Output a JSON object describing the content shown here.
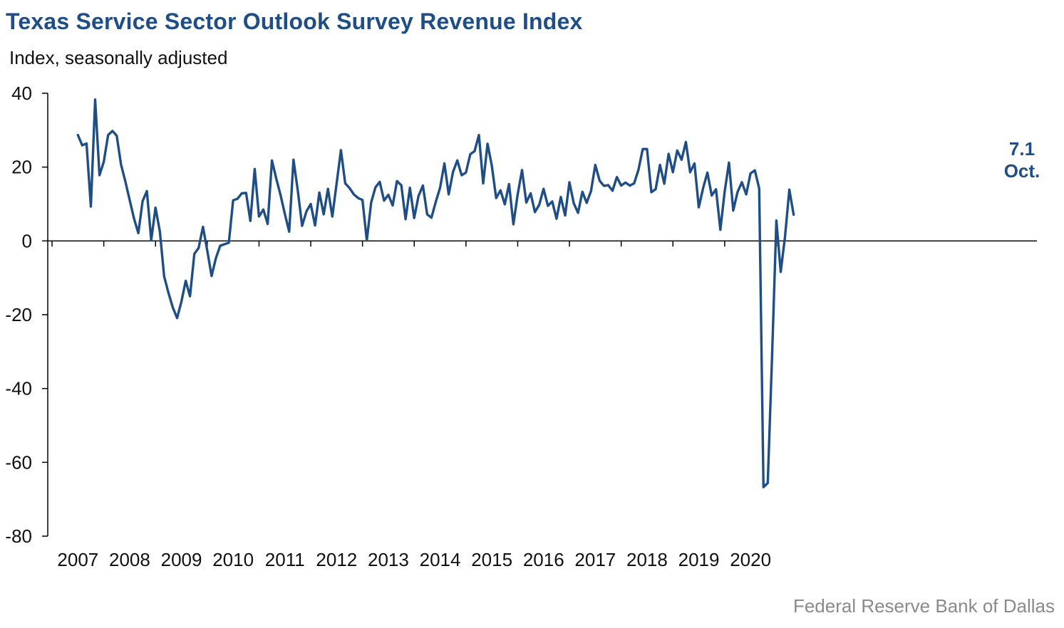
{
  "title": "Texas Service Sector Outlook Survey Revenue Index",
  "subtitle": "Index, seasonally adjusted",
  "source": "Federal Reserve Bank of Dallas",
  "colors": {
    "title": "#1f4e86",
    "series": "#1f4e86",
    "axis": "#000000",
    "source": "#8a8a8a"
  },
  "chart_data": {
    "type": "line",
    "title": "Texas Service Sector Outlook Survey Revenue Index",
    "ylabel": "Index, seasonally adjusted",
    "xlabel": "",
    "ylim": [
      -80,
      40
    ],
    "yticks": [
      40,
      20,
      0,
      -20,
      -40,
      -60,
      -80
    ],
    "ytick_labels": [
      "40",
      "20",
      "0",
      "-20",
      "-40",
      "-60",
      "-80"
    ],
    "xlim": [
      "2006-06",
      "2020-10"
    ],
    "xtick_labels": [
      "2007",
      "2008",
      "2009",
      "2010",
      "2011",
      "2012",
      "2013",
      "2014",
      "2015",
      "2016",
      "2017",
      "2018",
      "2019",
      "2020"
    ],
    "grid": false,
    "legend": "none",
    "start": "2007-01",
    "frequency": "monthly",
    "series": [
      {
        "values": [
          28.7,
          25.9,
          26.4,
          9.3,
          38.3,
          17.8,
          21.4,
          28.7,
          29.8,
          28.5,
          20.7,
          16.1,
          11.1,
          6.1,
          2.1,
          10.8,
          13.5,
          0.2,
          9.0,
          2.6,
          -9.6,
          -14.1,
          -18.0,
          -20.9,
          -16.5,
          -10.8,
          -15.0,
          -3.5,
          -1.9,
          3.8,
          -2.6,
          -9.5,
          -4.7,
          -1.3,
          -0.9,
          -0.5,
          11.0,
          11.4,
          12.9,
          13.0,
          5.4,
          19.5,
          6.6,
          8.5,
          4.6,
          21.8,
          16.9,
          12.4,
          7.3,
          2.5,
          22.0,
          13.6,
          4.1,
          8.0,
          10.0,
          4.2,
          13.1,
          7.2,
          14.1,
          6.6,
          15.5,
          24.6,
          15.6,
          14.3,
          12.6,
          11.6,
          11.1,
          0.1,
          10.4,
          14.5,
          16.0,
          10.9,
          12.5,
          9.6,
          16.2,
          15.1,
          5.9,
          14.4,
          6.2,
          12.2,
          15.0,
          7.2,
          6.3,
          10.6,
          14.4,
          21.0,
          12.6,
          18.7,
          21.8,
          17.8,
          18.5,
          23.5,
          24.3,
          28.7,
          15.6,
          26.3,
          20.4,
          11.6,
          13.7,
          9.9,
          15.4,
          4.5,
          12.6,
          19.2,
          10.4,
          12.9,
          7.8,
          9.8,
          14.1,
          9.5,
          10.7,
          6.0,
          11.9,
          6.9,
          15.9,
          10.2,
          7.6,
          13.3,
          10.3,
          13.5,
          20.6,
          16.3,
          14.9,
          15.1,
          13.6,
          17.3,
          15.0,
          15.8,
          15.0,
          15.6,
          19.2,
          24.9,
          24.9,
          13.2,
          14.0,
          20.6,
          15.5,
          23.6,
          18.6,
          24.5,
          22.0,
          26.8,
          18.6,
          21.0,
          9.1,
          14.3,
          18.5,
          12.3,
          14.0,
          3.0,
          13.3,
          21.2,
          8.2,
          13.3,
          15.9,
          12.6,
          18.3,
          19.1,
          14.2,
          -66.7,
          -65.6,
          -31.0,
          5.5,
          -8.4,
          1.1,
          13.9,
          7.1
        ]
      }
    ],
    "annotation": {
      "value_label": "7.1",
      "date_label": "Oct."
    }
  }
}
